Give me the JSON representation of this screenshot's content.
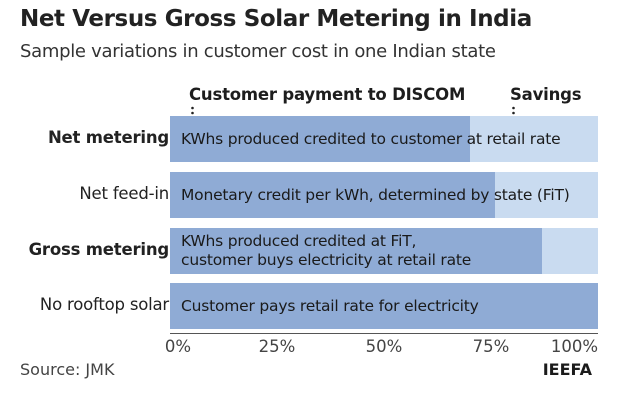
{
  "chart_data": {
    "type": "bar",
    "title": "Net Versus Gross Solar Metering in India",
    "subtitle": "Sample variations in customer cost in one Indian state",
    "header_labels": [
      "Customer payment to DISCOM",
      "Savings"
    ],
    "categories": [
      "Net metering",
      "Net feed-in",
      "Gross metering",
      "No rooftop solar"
    ],
    "bold_categories": [
      "Net metering",
      "Gross metering"
    ],
    "bar_labels": [
      [
        "KWhs produced credited to customer at retail rate"
      ],
      [
        "Monetary credit per kWh, determined by state (FiT)"
      ],
      [
        "KWhs produced credited at FiT,",
        "customer buys electricity at retail rate"
      ],
      [
        "Customer pays retail rate for electricity"
      ]
    ],
    "series": [
      {
        "name": "Customer payment to DISCOM",
        "values": [
          70,
          76,
          87,
          100
        ]
      },
      {
        "name": "Savings",
        "values": [
          30,
          24,
          13,
          0
        ]
      }
    ],
    "x_ticks": [
      "0%",
      "25%",
      "50%",
      "75%",
      "100%"
    ],
    "xlim": [
      0,
      100
    ],
    "colors": {
      "payment": "#8fabd5",
      "savings": "#c9dbf0"
    },
    "source": "Source: JMK",
    "brand": "IEEFA"
  }
}
